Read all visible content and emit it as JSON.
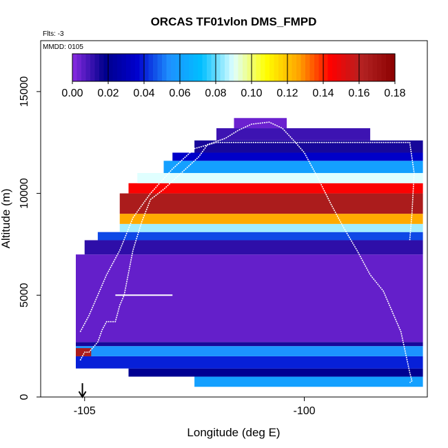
{
  "chart_data": {
    "type": "heatmap",
    "title": "ORCAS TF01vlon DMS_FMPD",
    "subtitle": "Flts: -3",
    "annotation": "MMDD: 0105",
    "xlabel": "Longitude (deg E)",
    "ylabel": "Altitude (m)",
    "xlim": [
      -106.0,
      -97.2
    ],
    "ylim": [
      0,
      17500
    ],
    "xticks": [
      -105,
      -100
    ],
    "xtick_labels": [
      "-105",
      "-100"
    ],
    "yticks": [
      0,
      5000,
      10000,
      15000
    ],
    "ytick_labels": [
      "0",
      "5000",
      "10000",
      "15000"
    ],
    "colorbar": {
      "min": 0.0,
      "max": 0.18,
      "ticks": [
        0.0,
        0.02,
        0.04,
        0.06,
        0.08,
        0.1,
        0.12,
        0.14,
        0.16,
        0.18
      ],
      "tick_labels": [
        "0.00",
        "0.02",
        "0.04",
        "0.06",
        "0.08",
        "0.10",
        "0.12",
        "0.14",
        "0.16",
        "0.18"
      ],
      "colors": [
        "#8a2be2",
        "#00008b",
        "#0000cd",
        "#1e90ff",
        "#00bfff",
        "#e0ffff",
        "#ffff00",
        "#ffa500",
        "#ff0000",
        "#b22222",
        "#8b0000"
      ]
    },
    "layers": [
      {
        "alt": [
          500,
          1000
        ],
        "lon": [
          -102.5,
          -97.3
        ],
        "value": 0.06
      },
      {
        "alt": [
          1000,
          1400
        ],
        "lon": [
          -104.0,
          -97.3
        ],
        "value": 0.02
      },
      {
        "alt": [
          1400,
          2000
        ],
        "lon": [
          -105.2,
          -97.3
        ],
        "value": 0.04
      },
      {
        "alt": [
          2000,
          2500
        ],
        "lon": [
          -105.2,
          -97.3
        ],
        "value": 0.055
      },
      {
        "alt": [
          2500,
          2700
        ],
        "lon": [
          -105.2,
          -97.3
        ],
        "value": 0.015
      },
      {
        "alt": [
          2700,
          7000
        ],
        "lon": [
          -105.2,
          -97.3
        ],
        "value": 0.005
      },
      {
        "alt": [
          7000,
          7700
        ],
        "lon": [
          -105.0,
          -97.3
        ],
        "value": 0.012
      },
      {
        "alt": [
          7700,
          8100
        ],
        "lon": [
          -104.7,
          -97.3
        ],
        "value": 0.045
      },
      {
        "alt": [
          8100,
          8500
        ],
        "lon": [
          -104.2,
          -97.3
        ],
        "value": 0.085
      },
      {
        "alt": [
          8500,
          9000
        ],
        "lon": [
          -104.2,
          -97.3
        ],
        "value": 0.125
      },
      {
        "alt": [
          9000,
          10000
        ],
        "lon": [
          -104.2,
          -97.3
        ],
        "value": 0.165
      },
      {
        "alt": [
          10000,
          10500
        ],
        "lon": [
          -104.0,
          -97.3
        ],
        "value": 0.145
      },
      {
        "alt": [
          10500,
          11000
        ],
        "lon": [
          -103.8,
          -97.3
        ],
        "value": 0.09
      },
      {
        "alt": [
          11000,
          11600
        ],
        "lon": [
          -103.2,
          -97.3
        ],
        "value": 0.06
      },
      {
        "alt": [
          11600,
          12000
        ],
        "lon": [
          -103.0,
          -97.3
        ],
        "value": 0.035
      },
      {
        "alt": [
          12000,
          12600
        ],
        "lon": [
          -102.5,
          -97.3
        ],
        "value": 0.015
      },
      {
        "alt": [
          12600,
          13200
        ],
        "lon": [
          -102.0,
          -98.5
        ],
        "value": 0.01
      },
      {
        "alt": [
          13200,
          13700
        ],
        "lon": [
          -101.6,
          -100.4
        ],
        "value": 0.004
      }
    ],
    "highlights": [
      {
        "alt": [
          2000,
          2400
        ],
        "lon": [
          -105.2,
          -104.85
        ],
        "value": 0.165
      }
    ],
    "flight_track": {
      "lon": [
        -105.1,
        -105.0,
        -104.9,
        -104.7,
        -104.6,
        -104.5,
        -104.3,
        -104.2,
        -104.1,
        -103.9,
        -103.7,
        -103.5,
        -103.2,
        -102.8,
        -102.4,
        -102.2,
        -101.8,
        -101.5,
        -101.2,
        -100.8,
        -100.5,
        -100.2,
        -100.0,
        -99.7,
        -99.4,
        -99.1,
        -98.8,
        -98.5,
        -98.2,
        -98.0,
        -97.8,
        -97.7,
        -97.6,
        -97.55,
        -97.6
      ],
      "alt": [
        1800,
        2200,
        2200,
        2700,
        3300,
        3700,
        3700,
        4500,
        5000,
        7200,
        8600,
        9700,
        10200,
        11000,
        11800,
        12400,
        12700,
        13100,
        13400,
        13500,
        13200,
        12500,
        12000,
        10800,
        9500,
        8300,
        7200,
        6000,
        5200,
        4200,
        3200,
        2200,
        1200,
        800,
        700
      ]
    },
    "flight_track_2": {
      "lon": [
        -105.1,
        -104.9,
        -104.7,
        -104.5,
        -104.2,
        -103.9,
        -103.5,
        -103.0,
        -102.5,
        -102.0,
        -101.5,
        -101.0,
        -100.5,
        -100.0,
        -99.5,
        -99.0,
        -98.5,
        -98.0,
        -97.6,
        -97.5,
        -97.55,
        -97.6
      ],
      "alt": [
        3200,
        4000,
        5000,
        6000,
        7200,
        8800,
        10000,
        11200,
        12200,
        12500,
        12500,
        12500,
        12500,
        12500,
        12500,
        12500,
        12500,
        12500,
        12500,
        11000,
        9000,
        7700
      ]
    },
    "leg_segment": {
      "lon": [
        -104.3,
        -103.0
      ],
      "alt": [
        5000,
        5000
      ]
    },
    "marker": {
      "lon": -105.05,
      "label": "launch-arrow"
    }
  }
}
